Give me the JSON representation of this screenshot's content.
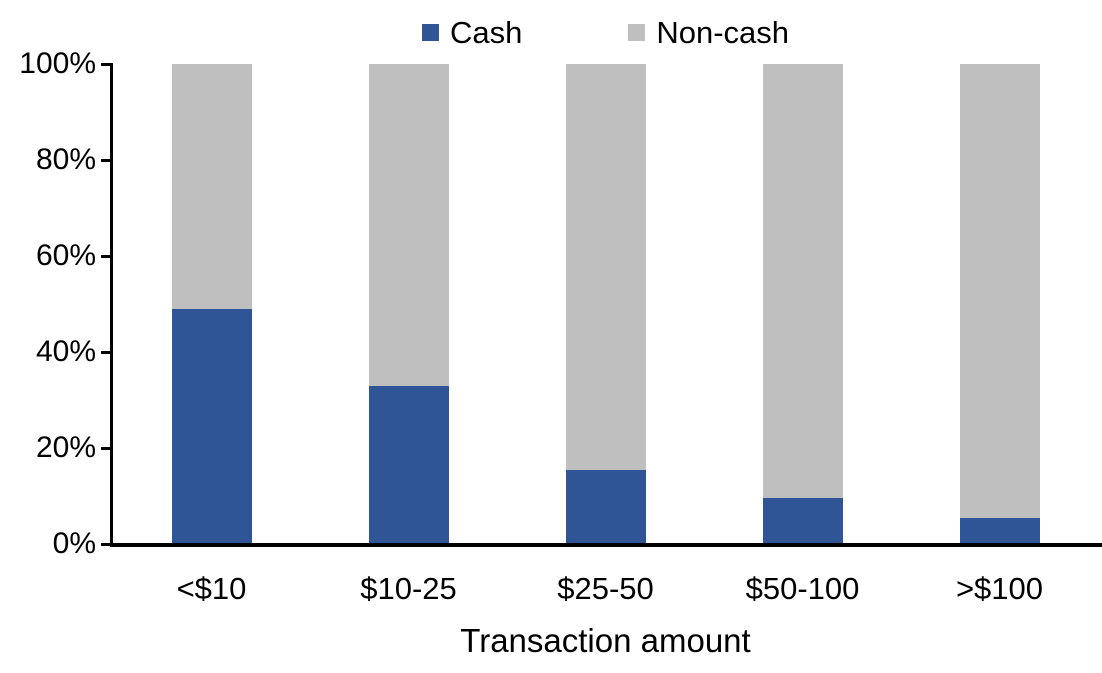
{
  "chart_data": {
    "type": "bar",
    "stacked": true,
    "stacked_total": 100,
    "title": "",
    "xlabel": "Transaction amount",
    "ylabel": "",
    "ylim": [
      0,
      100
    ],
    "yticks": [
      "0%",
      "20%",
      "40%",
      "60%",
      "80%",
      "100%"
    ],
    "grid": false,
    "legend_position": "top-center",
    "categories": [
      "<$10",
      "$10-25",
      "$25-50",
      "$50-100",
      ">$100"
    ],
    "series": [
      {
        "name": "Cash",
        "color": "#2F5597",
        "values": [
          49,
          33,
          15.5,
          9.5,
          5.5
        ]
      },
      {
        "name": "Non-cash",
        "color": "#BFBFBF",
        "values": [
          51,
          67,
          84.5,
          90.5,
          94.5
        ]
      }
    ]
  },
  "colors": {
    "axis": "#000000",
    "text": "#000000",
    "background": "#FFFFFF"
  }
}
